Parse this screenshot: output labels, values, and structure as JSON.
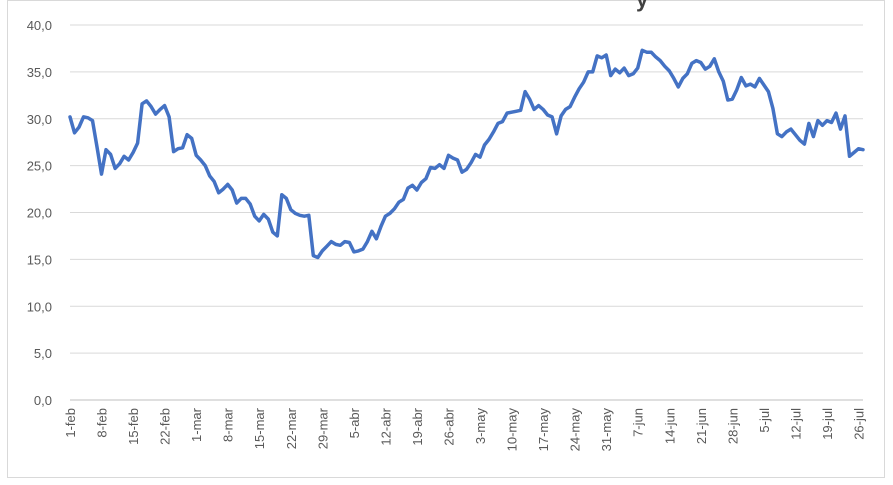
{
  "chart_data": {
    "type": "line",
    "title": "",
    "xlabel": "",
    "ylabel": "",
    "ylim": [
      0,
      40
    ],
    "grid": true,
    "legend": "none",
    "colors": {
      "line": "#4472C4",
      "grid": "#d9d9d9",
      "text": "#595959"
    },
    "yticks": [
      "0,0",
      "5,0",
      "10,0",
      "15,0",
      "20,0",
      "25,0",
      "30,0",
      "35,0",
      "40,0"
    ],
    "xticks": [
      "1-feb",
      "8-feb",
      "15-feb",
      "22-feb",
      "1-mar",
      "8-mar",
      "15-mar",
      "22-mar",
      "29-mar",
      "5-abr",
      "12-abr",
      "19-abr",
      "26-abr",
      "3-may",
      "10-may",
      "17-may",
      "24-may",
      "31-may",
      "7-jun",
      "14-jun",
      "21-jun",
      "28-jun",
      "5-jul",
      "12-jul",
      "19-jul",
      "26-jul"
    ],
    "series": [
      {
        "values": [
          30.2,
          28.5,
          29.1,
          30.2,
          30.1,
          29.8,
          27.0,
          24.1,
          26.7,
          26.2,
          24.7,
          25.2,
          26.0,
          25.6,
          26.4,
          27.4,
          31.6,
          31.9,
          31.3,
          30.5,
          31.0,
          31.4,
          30.2,
          26.5,
          26.8,
          26.9,
          28.3,
          27.9,
          26.1,
          25.6,
          25.0,
          23.9,
          23.3,
          22.1,
          22.5,
          23.0,
          22.4,
          21.0,
          21.5,
          21.5,
          20.9,
          19.6,
          19.1,
          19.8,
          19.3,
          17.9,
          17.5,
          21.9,
          21.5,
          20.3,
          19.9,
          19.7,
          19.6,
          19.7,
          15.4,
          15.2,
          15.9,
          16.4,
          16.9,
          16.6,
          16.5,
          16.9,
          16.8,
          15.8,
          15.9,
          16.1,
          16.9,
          18.0,
          17.2,
          18.5,
          19.6,
          19.9,
          20.4,
          21.1,
          21.4,
          22.6,
          22.9,
          22.4,
          23.2,
          23.6,
          24.8,
          24.7,
          25.1,
          24.7,
          26.1,
          25.8,
          25.6,
          24.3,
          24.6,
          25.3,
          26.2,
          25.9,
          27.2,
          27.8,
          28.6,
          29.5,
          29.7,
          30.6,
          30.7,
          30.8,
          30.9,
          32.9,
          32.1,
          31.0,
          31.4,
          31.0,
          30.4,
          30.2,
          28.4,
          30.3,
          31.0,
          31.3,
          32.3,
          33.2,
          33.9,
          35.0,
          35.0,
          36.7,
          36.5,
          36.8,
          34.6,
          35.3,
          34.9,
          35.4,
          34.6,
          34.8,
          35.4,
          37.3,
          37.1,
          37.1,
          36.6,
          36.2,
          35.6,
          35.1,
          34.3,
          33.4,
          34.3,
          34.8,
          35.9,
          36.2,
          36.0,
          35.3,
          35.6,
          36.4,
          35.0,
          34.0,
          32.0,
          32.1,
          33.1,
          34.4,
          33.5,
          33.7,
          33.4,
          34.3,
          33.6,
          32.9,
          31.1,
          28.4,
          28.1,
          28.6,
          28.9,
          28.3,
          27.7,
          27.3,
          29.5,
          28.1,
          29.8,
          29.3,
          29.8,
          29.6,
          30.6,
          28.9,
          30.3,
          26.0,
          26.4,
          26.8,
          26.7
        ]
      }
    ]
  },
  "overlays": {
    "title_fragment": "y"
  }
}
